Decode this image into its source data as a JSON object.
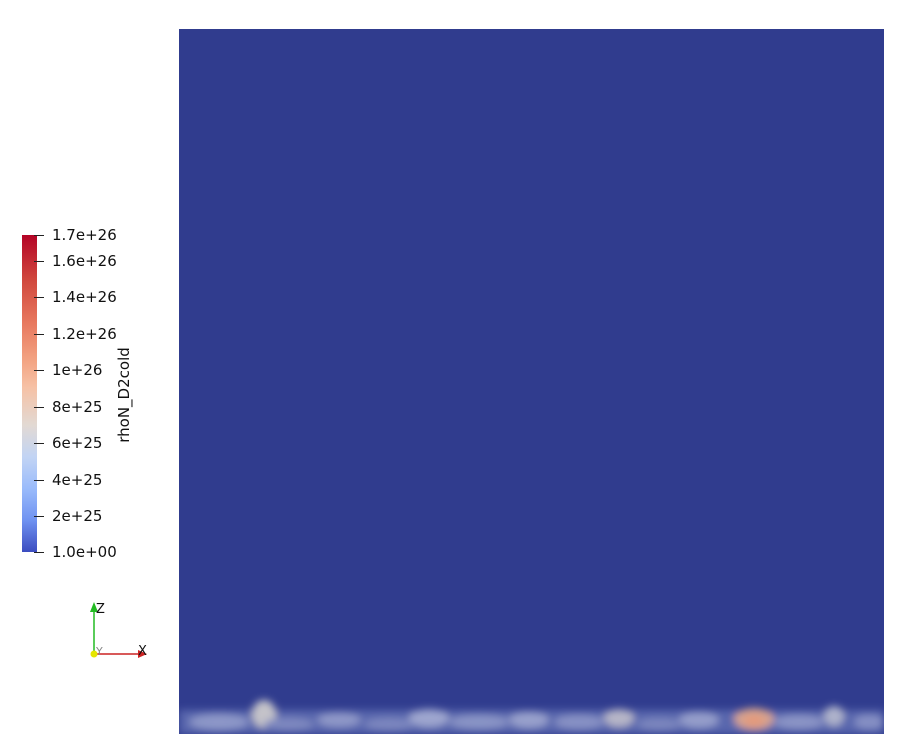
{
  "colorbar": {
    "title": "rhoN_D2cold",
    "ticks": [
      {
        "label": "1.7e+26"
      },
      {
        "label": "1.6e+26"
      },
      {
        "label": "1.4e+26"
      },
      {
        "label": "1.2e+26"
      },
      {
        "label": "1e+26"
      },
      {
        "label": "8e+25"
      },
      {
        "label": "6e+25"
      },
      {
        "label": "4e+25"
      },
      {
        "label": "2e+25"
      },
      {
        "label": "1.0e+00"
      }
    ],
    "colormap": [
      "#3b4cc0",
      "#dddcdc",
      "#b40426"
    ]
  },
  "render": {
    "background_color": "#303c8e"
  },
  "axes": {
    "z_label": "Z",
    "y_label": "Y",
    "x_label": "X",
    "z_color": "#22bb22",
    "x_color": "#cc2222",
    "y_color": "#e6e600"
  }
}
